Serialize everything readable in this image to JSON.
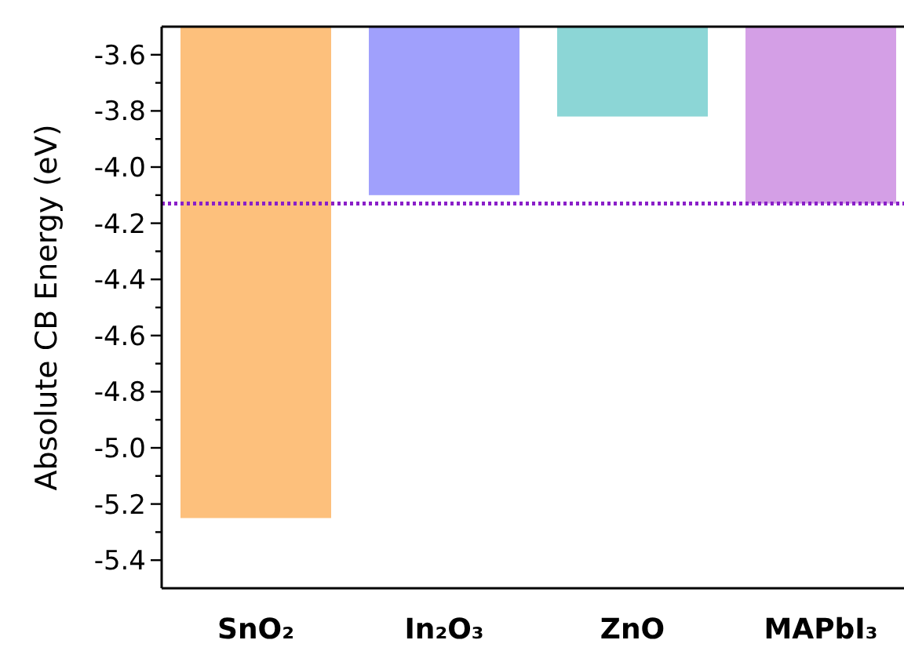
{
  "chart_data": {
    "type": "bar",
    "ylabel": "Absolute CB Energy (eV)",
    "categories": [
      "SnO₂",
      "In₂O₃",
      "ZnO",
      "MAPbI₃"
    ],
    "values": [
      -5.25,
      -4.1,
      -3.82,
      -4.13
    ],
    "colors": [
      "#fdc07c",
      "#a0a0fc",
      "#8cd6d6",
      "#d49fe6"
    ],
    "ylim": [
      -5.5,
      -3.5
    ],
    "yticks": [
      -3.6,
      {
        "value": -3.7,
        "label": null
      },
      -3.8,
      {
        "value": -3.9,
        "label": null
      },
      {
        "value": -4.0,
        "label": "-4.0"
      },
      {
        "value": -4.1,
        "label": null
      },
      -4.2,
      {
        "value": -4.3,
        "label": null
      },
      -4.4,
      {
        "value": -4.5,
        "label": null
      },
      -4.6,
      {
        "value": -4.7,
        "label": null
      },
      -4.8,
      {
        "value": -4.9,
        "label": null
      },
      {
        "value": -5.0,
        "label": "-5.0"
      },
      {
        "value": -5.1,
        "label": null
      },
      -5.2,
      {
        "value": -5.3,
        "label": null
      },
      -5.4
    ],
    "ref_lines": [
      {
        "axis": "y",
        "value": -4.13,
        "color": "#8a1fc8",
        "line_style": "dotted"
      }
    ],
    "grid": false
  }
}
